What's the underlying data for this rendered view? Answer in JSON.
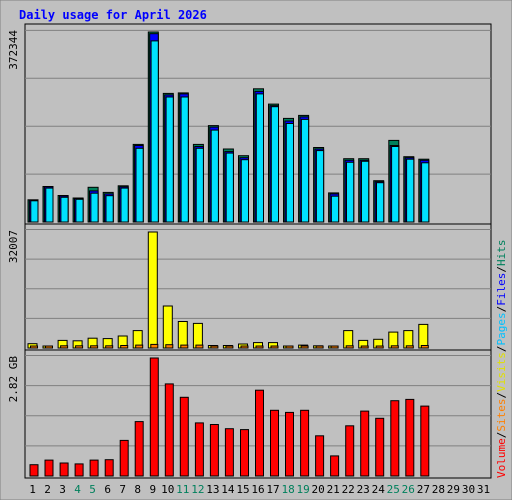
{
  "chart_data": {
    "type": "bar",
    "title": "Daily usage for April 2026",
    "categories": [
      "1",
      "2",
      "3",
      "4",
      "5",
      "6",
      "7",
      "8",
      "9",
      "10",
      "11",
      "12",
      "13",
      "14",
      "15",
      "16",
      "17",
      "18",
      "19",
      "20",
      "21",
      "22",
      "23",
      "24",
      "25",
      "26",
      "27",
      "28",
      "29",
      "30",
      "31"
    ],
    "weekend_days": [
      "4",
      "5",
      "11",
      "12",
      "18",
      "19",
      "25",
      "26"
    ],
    "panels": [
      {
        "id": "hits",
        "max_label": "372344",
        "ylim": [
          0,
          372344
        ],
        "series": [
          {
            "name": "Hits",
            "color": "#00805c",
            "values": [
              43500,
              69500,
              52000,
              47000,
              68000,
              58000,
              71000,
              152000,
              372344,
              252000,
              253000,
              152000,
              189000,
              143000,
              130000,
              261000,
              231000,
              203000,
              209000,
              146000,
              57000,
              124000,
              124000,
              81000,
              160000,
              128000,
              123000,
              0,
              0,
              0,
              0
            ]
          },
          {
            "name": "Files",
            "color": "#0000ff",
            "values": [
              43000,
              69000,
              51000,
              46000,
              61000,
              55000,
              69000,
              150000,
              369000,
              249000,
              251000,
              148000,
              186000,
              138000,
              126000,
              256000,
              228000,
              198000,
              206000,
              143000,
              55000,
              121000,
              121000,
              79000,
              150000,
              126000,
              121000,
              0,
              0,
              0,
              0
            ]
          },
          {
            "name": "Pages",
            "color": "#00e0ff",
            "values": [
              41500,
              66500,
              48500,
              44500,
              56500,
              51500,
              66500,
              144500,
              355000,
              245000,
              245000,
              144500,
              180000,
              135000,
              122000,
              251000,
              226000,
              193000,
              201000,
              140000,
              50500,
              117000,
              119000,
              77000,
              148000,
              123000,
              116000,
              0,
              0,
              0,
              0
            ]
          }
        ]
      },
      {
        "id": "visits",
        "max_label": "32007",
        "ylim": [
          0,
          32007
        ],
        "series": [
          {
            "name": "Visits",
            "color": "#ffff00",
            "values": [
              1200,
              500,
              2100,
              2000,
              2700,
              2600,
              3300,
              4800,
              32007,
              11600,
              7300,
              6800,
              700,
              700,
              1100,
              1500,
              1500,
              500,
              800,
              600,
              300,
              4800,
              2100,
              2400,
              4400,
              4800,
              6500,
              0,
              0,
              0,
              0
            ]
          },
          {
            "name": "Sites",
            "color": "#ff8000",
            "values": [
              400,
              300,
              600,
              600,
              600,
              600,
              700,
              800,
              1000,
              900,
              800,
              800,
              400,
              400,
              400,
              500,
              500,
              300,
              400,
              300,
              200,
              600,
              500,
              500,
              600,
              600,
              700,
              0,
              0,
              0,
              0
            ]
          }
        ]
      },
      {
        "id": "volume",
        "max_label": "2.82 GB",
        "ylim": [
          0,
          2.82
        ],
        "series": [
          {
            "name": "Volume",
            "color": "#ff0000",
            "values": [
              0.27,
              0.38,
              0.31,
              0.29,
              0.38,
              0.39,
              0.85,
              1.3,
              2.82,
              2.2,
              1.88,
              1.27,
              1.23,
              1.13,
              1.11,
              2.05,
              1.57,
              1.52,
              1.57,
              0.96,
              0.48,
              1.2,
              1.55,
              1.38,
              1.8,
              1.83,
              1.67,
              0,
              0,
              0,
              0
            ]
          }
        ]
      }
    ],
    "legend": {
      "placement": "right",
      "items": [
        {
          "label": "Volume",
          "color": "#ff0000"
        },
        {
          "label": "Sites",
          "color": "#ff8000"
        },
        {
          "label": "Visits",
          "color": "#e0e000"
        },
        {
          "label": "Pages",
          "color": "#00c0ff"
        },
        {
          "label": "Files",
          "color": "#0000ff"
        },
        {
          "label": "Hits",
          "color": "#00805c"
        }
      ],
      "separator": "/"
    },
    "colors": {
      "background": "#c0c0c0",
      "title": "#0000ff",
      "axis_text": "#000000",
      "weekend_text": "#00805c",
      "gridline": "#808080"
    }
  }
}
